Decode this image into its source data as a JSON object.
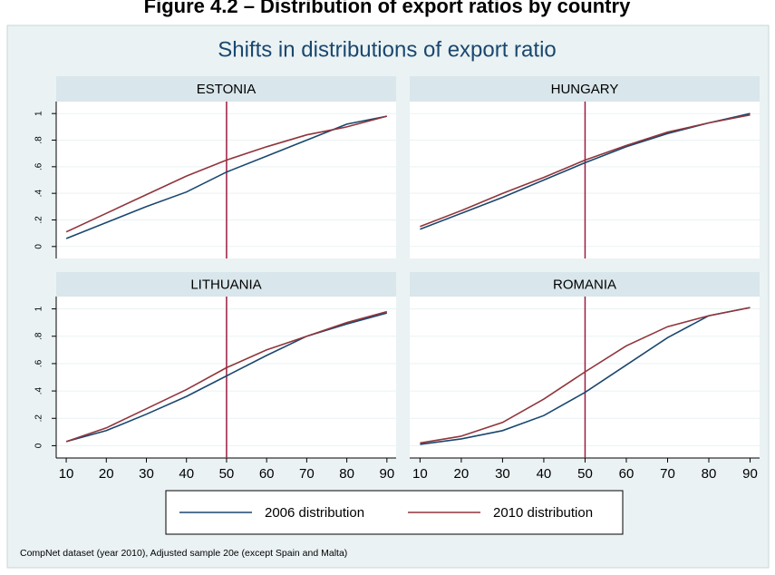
{
  "figure_title": "Figure 4.2 – Distribution of export ratios by country",
  "title": "Shifts in distributions of export ratio",
  "note": "CompNet dataset (year 2010), Adjusted sample 20e (except Spain and Malta)",
  "chart_data": [
    {
      "type": "line",
      "title": "ESTONIA",
      "x": [
        10,
        20,
        30,
        40,
        50,
        60,
        70,
        80,
        90
      ],
      "series": [
        {
          "name": "2006 distribution",
          "color": "#1a476f",
          "values": [
            0.06,
            0.18,
            0.3,
            0.41,
            0.56,
            0.68,
            0.8,
            0.92,
            0.98
          ]
        },
        {
          "name": "2010 distribution",
          "color": "#90353b",
          "values": [
            0.11,
            0.25,
            0.39,
            0.53,
            0.65,
            0.75,
            0.84,
            0.9,
            0.98
          ]
        }
      ],
      "xlim": [
        7.5,
        92.3
      ],
      "ylim": [
        -0.09,
        1.09
      ],
      "yticks": [
        0,
        {
          "value": 0.2,
          "label": ".2"
        },
        {
          "value": 0.4,
          "label": ".4"
        },
        {
          "value": 0.6,
          "label": ".6"
        },
        {
          "value": 0.8,
          "label": ".8"
        },
        1
      ],
      "vline": 50,
      "vline_color": "#9b1b40",
      "grid": true
    },
    {
      "type": "line",
      "title": "HUNGARY",
      "x": [
        10,
        20,
        30,
        40,
        50,
        60,
        70,
        80,
        90
      ],
      "series": [
        {
          "name": "2006 distribution",
          "color": "#1a476f",
          "values": [
            0.13,
            0.25,
            0.37,
            0.5,
            0.63,
            0.75,
            0.85,
            0.93,
            1.0
          ]
        },
        {
          "name": "2010 distribution",
          "color": "#90353b",
          "values": [
            0.15,
            0.27,
            0.4,
            0.52,
            0.65,
            0.76,
            0.86,
            0.93,
            0.99
          ]
        }
      ],
      "xlim": [
        7.5,
        92.3
      ],
      "ylim": [
        -0.09,
        1.09
      ],
      "yticks": [
        0,
        0.2,
        0.4,
        0.6,
        0.8,
        1
      ],
      "vline": 50,
      "vline_color": "#9b1b40",
      "grid": true
    },
    {
      "type": "line",
      "title": "LITHUANIA",
      "x": [
        10,
        20,
        30,
        40,
        50,
        60,
        70,
        80,
        90
      ],
      "series": [
        {
          "name": "2006 distribution",
          "color": "#1a476f",
          "values": [
            0.03,
            0.11,
            0.23,
            0.36,
            0.51,
            0.66,
            0.8,
            0.89,
            0.97
          ]
        },
        {
          "name": "2010 distribution",
          "color": "#90353b",
          "values": [
            0.03,
            0.13,
            0.27,
            0.41,
            0.57,
            0.7,
            0.8,
            0.9,
            0.98
          ]
        }
      ],
      "xlim": [
        7.5,
        92.3
      ],
      "ylim": [
        -0.09,
        1.09
      ],
      "xticks": [
        10,
        20,
        30,
        40,
        50,
        60,
        70,
        80,
        90
      ],
      "yticks": [
        0,
        {
          "value": 0.2,
          "label": ".2"
        },
        {
          "value": 0.4,
          "label": ".4"
        },
        {
          "value": 0.6,
          "label": ".6"
        },
        {
          "value": 0.8,
          "label": ".8"
        },
        1
      ],
      "vline": 50,
      "vline_color": "#9b1b40",
      "grid": true
    },
    {
      "type": "line",
      "title": "ROMANIA",
      "x": [
        10,
        20,
        30,
        40,
        50,
        60,
        70,
        80,
        90
      ],
      "series": [
        {
          "name": "2006 distribution",
          "color": "#1a476f",
          "values": [
            0.01,
            0.05,
            0.11,
            0.22,
            0.39,
            0.59,
            0.79,
            0.95,
            1.01
          ]
        },
        {
          "name": "2010 distribution",
          "color": "#90353b",
          "values": [
            0.02,
            0.07,
            0.17,
            0.34,
            0.54,
            0.73,
            0.87,
            0.95,
            1.01
          ]
        }
      ],
      "xlim": [
        7.5,
        92.3
      ],
      "ylim": [
        -0.09,
        1.09
      ],
      "xticks": [
        10,
        20,
        30,
        40,
        50,
        60,
        70,
        80,
        90
      ],
      "yticks": [
        0,
        0.2,
        0.4,
        0.6,
        0.8,
        1
      ],
      "vline": 50,
      "vline_color": "#9b1b40",
      "grid": true
    }
  ]
}
